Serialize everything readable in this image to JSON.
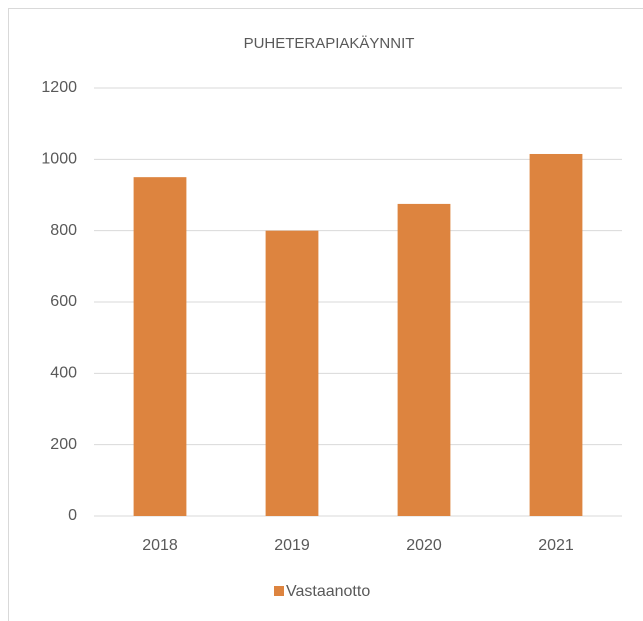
{
  "chart_data": {
    "type": "bar",
    "title": "PUHETERAPIAKÄYNNIT",
    "categories": [
      "2018",
      "2019",
      "2020",
      "2021"
    ],
    "series": [
      {
        "name": "Vastaanotto",
        "color": "#dd843f",
        "values": [
          950,
          800,
          875,
          1015
        ]
      }
    ],
    "ylim": [
      0,
      1200
    ],
    "yticks": [
      0,
      200,
      400,
      600,
      800,
      1000,
      1200
    ],
    "grid": true,
    "legend": "bottom"
  }
}
